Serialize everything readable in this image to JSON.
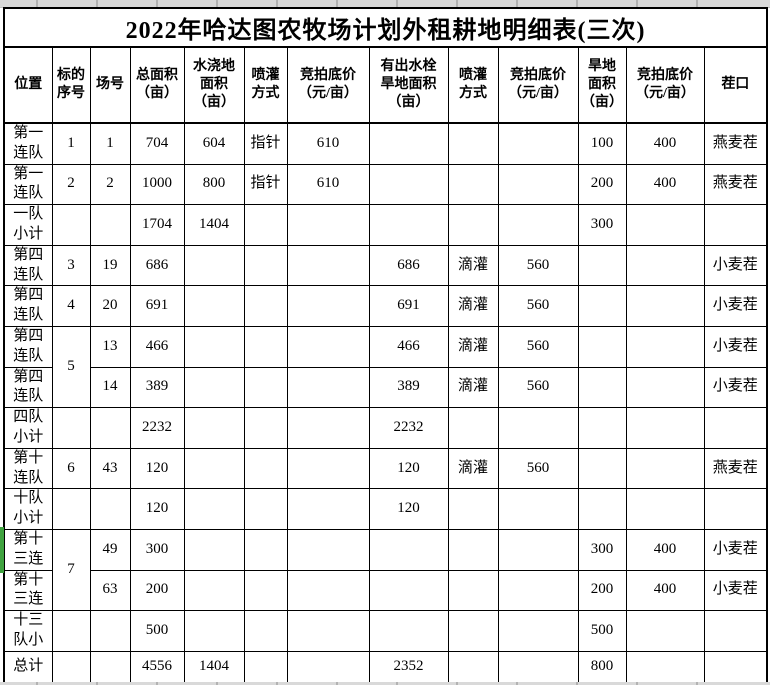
{
  "title": "2022年哈达图农牧场计划外租耕地明细表(三次)",
  "colors": {
    "table_border": "#000000",
    "sheet_gridline": "#b3b3b3",
    "gridstrip_background": "#d9d9d9",
    "selection_marker_green": "#3fa33f",
    "cell_background": "#ffffff",
    "text": "#000000"
  },
  "table": {
    "columns": [
      "位置",
      "标的\n序号",
      "场号",
      "总面积\n（亩）",
      "水浇地\n面积\n（亩）",
      "喷灌\n方式",
      "竞拍底价\n（元/亩）",
      "有出水栓\n旱地面积\n（亩）",
      "喷灌\n方式",
      "竞拍底价\n（元/亩）",
      "旱地\n面积\n（亩）",
      "竞拍底价\n（元/亩）",
      "茬口"
    ],
    "rows": [
      [
        "第一\n连队",
        "1",
        "1",
        "704",
        "604",
        "指针",
        "610",
        "",
        "",
        "",
        "100",
        "400",
        "燕麦茬"
      ],
      [
        "第一\n连队",
        "2",
        "2",
        "1000",
        "800",
        "指针",
        "610",
        "",
        "",
        "",
        "200",
        "400",
        "燕麦茬"
      ],
      [
        "一队\n小计",
        "",
        "",
        "1704",
        "1404",
        "",
        "",
        "",
        "",
        "",
        "300",
        "",
        ""
      ],
      [
        "第四\n连队",
        "3",
        "19",
        "686",
        "",
        "",
        "",
        "686",
        "滴灌",
        "560",
        "",
        "",
        "小麦茬"
      ],
      [
        "第四\n连队",
        "4",
        "20",
        "691",
        "",
        "",
        "",
        "691",
        "滴灌",
        "560",
        "",
        "",
        "小麦茬"
      ],
      [
        "第四\n连队",
        {
          "text": "5",
          "rowspan": 2
        },
        "13",
        "466",
        "",
        "",
        "",
        "466",
        "滴灌",
        "560",
        "",
        "",
        "小麦茬"
      ],
      [
        "第四\n连队",
        null,
        "14",
        "389",
        "",
        "",
        "",
        "389",
        "滴灌",
        "560",
        "",
        "",
        "小麦茬"
      ],
      [
        "四队\n小计",
        "",
        "",
        "2232",
        "",
        "",
        "",
        "2232",
        "",
        "",
        "",
        "",
        ""
      ],
      [
        "第十\n连队",
        "6",
        "43",
        "120",
        "",
        "",
        "",
        "120",
        "滴灌",
        "560",
        "",
        "",
        "燕麦茬"
      ],
      [
        "十队\n小计",
        "",
        "",
        "120",
        "",
        "",
        "",
        "120",
        "",
        "",
        "",
        "",
        ""
      ],
      [
        "第十\n三连",
        {
          "text": "7",
          "rowspan": 2
        },
        "49",
        "300",
        "",
        "",
        "",
        "",
        "",
        "",
        "300",
        "400",
        "小麦茬"
      ],
      [
        "第十\n三连",
        null,
        "63",
        "200",
        "",
        "",
        "",
        "",
        "",
        "",
        "200",
        "400",
        "小麦茬"
      ],
      [
        "十三\n队小",
        "",
        "",
        "500",
        "",
        "",
        "",
        "",
        "",
        "",
        "500",
        "",
        ""
      ],
      [
        "总计",
        "",
        "",
        "4556",
        "1404",
        "",
        "",
        "2352",
        "",
        "",
        "800",
        "",
        ""
      ]
    ]
  }
}
